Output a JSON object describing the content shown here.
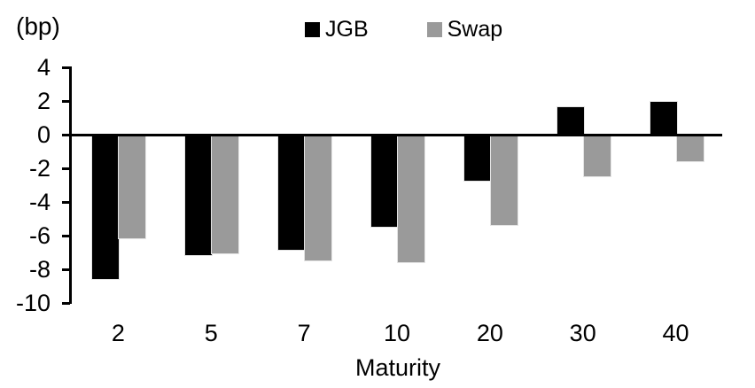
{
  "unit_label": "(bp)",
  "chart_data": {
    "type": "bar",
    "title": "",
    "unit_label": "(bp)",
    "xlabel": "Maturity",
    "ylabel": "",
    "categories": [
      "2",
      "5",
      "7",
      "10",
      "20",
      "30",
      "40"
    ],
    "series": [
      {
        "name": "JGB",
        "color": "#000000",
        "values": [
          -8.5,
          -7.1,
          -6.8,
          -5.4,
          -2.7,
          1.7,
          2.0
        ]
      },
      {
        "name": "Swap",
        "color": "#9a9a9a",
        "values": [
          -6.1,
          -7.0,
          -7.4,
          -7.5,
          -5.3,
          -2.4,
          -1.5
        ]
      }
    ],
    "ylim": [
      -10,
      4
    ],
    "yticks": [
      4,
      2,
      0,
      -2,
      -4,
      -6,
      -8,
      -10
    ],
    "grid": false,
    "legend_position": "top-center"
  }
}
